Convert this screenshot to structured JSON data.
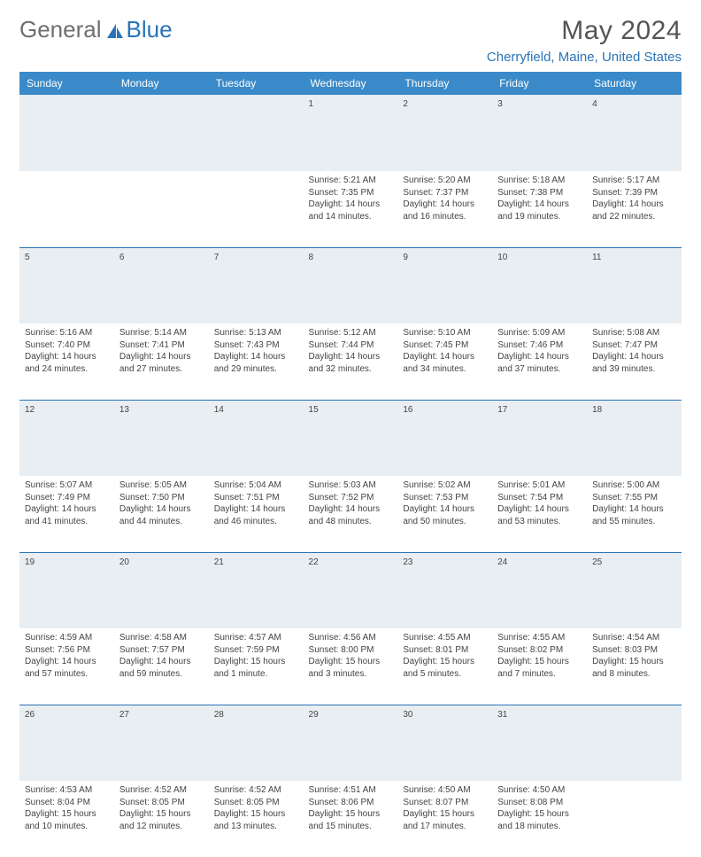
{
  "brand": {
    "part1": "General",
    "part2": "Blue"
  },
  "title": "May 2024",
  "location": "Cherryfield, Maine, United States",
  "colors": {
    "header_bg": "#3a8ac9",
    "accent": "#2a73b8",
    "daynum_bg": "#e9eef2",
    "text": "#444444",
    "title_text": "#555555"
  },
  "weekdays": [
    "Sunday",
    "Monday",
    "Tuesday",
    "Wednesday",
    "Thursday",
    "Friday",
    "Saturday"
  ],
  "weeks": [
    [
      null,
      null,
      null,
      {
        "n": "1",
        "sr": "5:21 AM",
        "ss": "7:35 PM",
        "dl": "14 hours and 14 minutes."
      },
      {
        "n": "2",
        "sr": "5:20 AM",
        "ss": "7:37 PM",
        "dl": "14 hours and 16 minutes."
      },
      {
        "n": "3",
        "sr": "5:18 AM",
        "ss": "7:38 PM",
        "dl": "14 hours and 19 minutes."
      },
      {
        "n": "4",
        "sr": "5:17 AM",
        "ss": "7:39 PM",
        "dl": "14 hours and 22 minutes."
      }
    ],
    [
      {
        "n": "5",
        "sr": "5:16 AM",
        "ss": "7:40 PM",
        "dl": "14 hours and 24 minutes."
      },
      {
        "n": "6",
        "sr": "5:14 AM",
        "ss": "7:41 PM",
        "dl": "14 hours and 27 minutes."
      },
      {
        "n": "7",
        "sr": "5:13 AM",
        "ss": "7:43 PM",
        "dl": "14 hours and 29 minutes."
      },
      {
        "n": "8",
        "sr": "5:12 AM",
        "ss": "7:44 PM",
        "dl": "14 hours and 32 minutes."
      },
      {
        "n": "9",
        "sr": "5:10 AM",
        "ss": "7:45 PM",
        "dl": "14 hours and 34 minutes."
      },
      {
        "n": "10",
        "sr": "5:09 AM",
        "ss": "7:46 PM",
        "dl": "14 hours and 37 minutes."
      },
      {
        "n": "11",
        "sr": "5:08 AM",
        "ss": "7:47 PM",
        "dl": "14 hours and 39 minutes."
      }
    ],
    [
      {
        "n": "12",
        "sr": "5:07 AM",
        "ss": "7:49 PM",
        "dl": "14 hours and 41 minutes."
      },
      {
        "n": "13",
        "sr": "5:05 AM",
        "ss": "7:50 PM",
        "dl": "14 hours and 44 minutes."
      },
      {
        "n": "14",
        "sr": "5:04 AM",
        "ss": "7:51 PM",
        "dl": "14 hours and 46 minutes."
      },
      {
        "n": "15",
        "sr": "5:03 AM",
        "ss": "7:52 PM",
        "dl": "14 hours and 48 minutes."
      },
      {
        "n": "16",
        "sr": "5:02 AM",
        "ss": "7:53 PM",
        "dl": "14 hours and 50 minutes."
      },
      {
        "n": "17",
        "sr": "5:01 AM",
        "ss": "7:54 PM",
        "dl": "14 hours and 53 minutes."
      },
      {
        "n": "18",
        "sr": "5:00 AM",
        "ss": "7:55 PM",
        "dl": "14 hours and 55 minutes."
      }
    ],
    [
      {
        "n": "19",
        "sr": "4:59 AM",
        "ss": "7:56 PM",
        "dl": "14 hours and 57 minutes."
      },
      {
        "n": "20",
        "sr": "4:58 AM",
        "ss": "7:57 PM",
        "dl": "14 hours and 59 minutes."
      },
      {
        "n": "21",
        "sr": "4:57 AM",
        "ss": "7:59 PM",
        "dl": "15 hours and 1 minute."
      },
      {
        "n": "22",
        "sr": "4:56 AM",
        "ss": "8:00 PM",
        "dl": "15 hours and 3 minutes."
      },
      {
        "n": "23",
        "sr": "4:55 AM",
        "ss": "8:01 PM",
        "dl": "15 hours and 5 minutes."
      },
      {
        "n": "24",
        "sr": "4:55 AM",
        "ss": "8:02 PM",
        "dl": "15 hours and 7 minutes."
      },
      {
        "n": "25",
        "sr": "4:54 AM",
        "ss": "8:03 PM",
        "dl": "15 hours and 8 minutes."
      }
    ],
    [
      {
        "n": "26",
        "sr": "4:53 AM",
        "ss": "8:04 PM",
        "dl": "15 hours and 10 minutes."
      },
      {
        "n": "27",
        "sr": "4:52 AM",
        "ss": "8:05 PM",
        "dl": "15 hours and 12 minutes."
      },
      {
        "n": "28",
        "sr": "4:52 AM",
        "ss": "8:05 PM",
        "dl": "15 hours and 13 minutes."
      },
      {
        "n": "29",
        "sr": "4:51 AM",
        "ss": "8:06 PM",
        "dl": "15 hours and 15 minutes."
      },
      {
        "n": "30",
        "sr": "4:50 AM",
        "ss": "8:07 PM",
        "dl": "15 hours and 17 minutes."
      },
      {
        "n": "31",
        "sr": "4:50 AM",
        "ss": "8:08 PM",
        "dl": "15 hours and 18 minutes."
      },
      null
    ]
  ],
  "labels": {
    "sunrise": "Sunrise:",
    "sunset": "Sunset:",
    "daylight": "Daylight:"
  }
}
